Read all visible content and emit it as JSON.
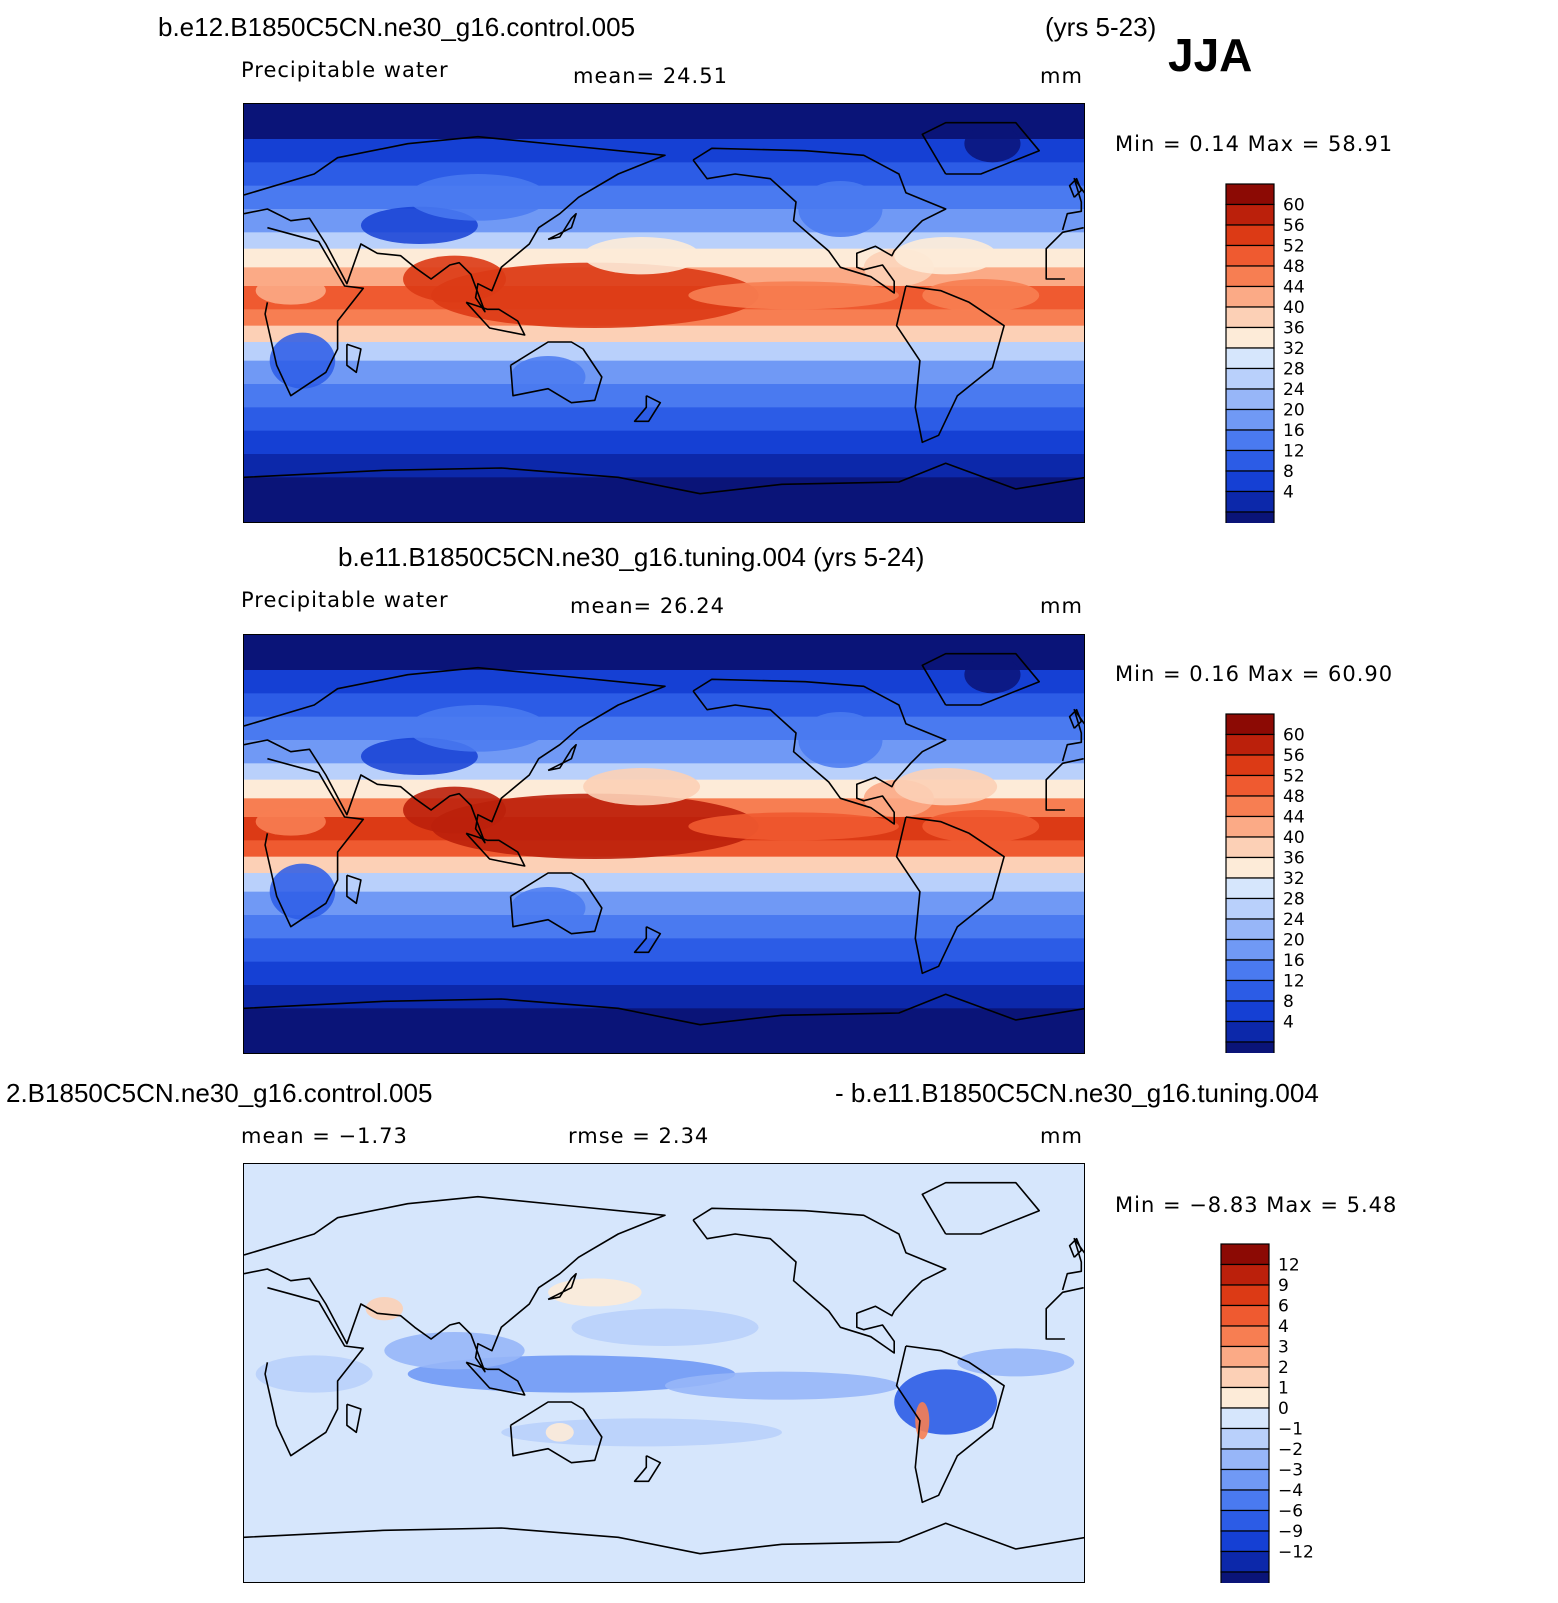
{
  "season": "JJA",
  "colors": {
    "abs_scale": [
      "#0a1478",
      "#0c28aa",
      "#1540d4",
      "#2c5ce6",
      "#4a7af0",
      "#7099f5",
      "#97b6f8",
      "#b9d0fb",
      "#d6e6fc",
      "#fdebd8",
      "#fcd0b6",
      "#fbaa86",
      "#f77e52",
      "#ef5a30",
      "#dc3a15",
      "#bb200b",
      "#8c0a04"
    ],
    "diff_scale": [
      "#0a1478",
      "#0c28aa",
      "#1540d4",
      "#2c5ce6",
      "#4a7af0",
      "#7099f5",
      "#97b6f8",
      "#b9d0fb",
      "#d6e6fc",
      "#fdebd8",
      "#fcd0b6",
      "#fbaa86",
      "#f77e52",
      "#ef5a30",
      "#dc3a15",
      "#bb200b",
      "#8c0a04"
    ]
  },
  "panels": [
    {
      "title_left": "b.e12.B1850C5CN.ne30_g16.control.005",
      "title_right": "(yrs 5-23)",
      "variable": "Precipitable  water",
      "stat": "mean=   24.51",
      "units": "mm",
      "minmax": "Min  =     0.14  Max  =    58.91",
      "levels": [
        "60",
        "56",
        "52",
        "48",
        "44",
        "40",
        "36",
        "32",
        "28",
        "24",
        "20",
        "16",
        "12",
        "8",
        "4"
      ]
    },
    {
      "title": "b.e11.B1850C5CN.ne30_g16.tuning.004 (yrs 5-24)",
      "variable": "Precipitable  water",
      "stat": "mean=   26.24",
      "units": "mm",
      "minmax": "Min  =     0.16  Max  =    60.90",
      "levels": [
        "60",
        "56",
        "52",
        "48",
        "44",
        "40",
        "36",
        "32",
        "28",
        "24",
        "20",
        "16",
        "12",
        "8",
        "4"
      ]
    },
    {
      "title_left": "2.B1850C5CN.ne30_g16.control.005",
      "title_right": "- b.e11.B1850C5CN.ne30_g16.tuning.004",
      "stat_left": "mean  =   −1.73",
      "stat": "rmse  =     2.34",
      "units": "mm",
      "minmax": "Min  =   −8.83  Max  =     5.48",
      "levels": [
        "12",
        "9",
        "6",
        "4",
        "3",
        "2",
        "1",
        "0",
        "−1",
        "−2",
        "−3",
        "−4",
        "−6",
        "−9",
        "−12"
      ]
    }
  ]
}
